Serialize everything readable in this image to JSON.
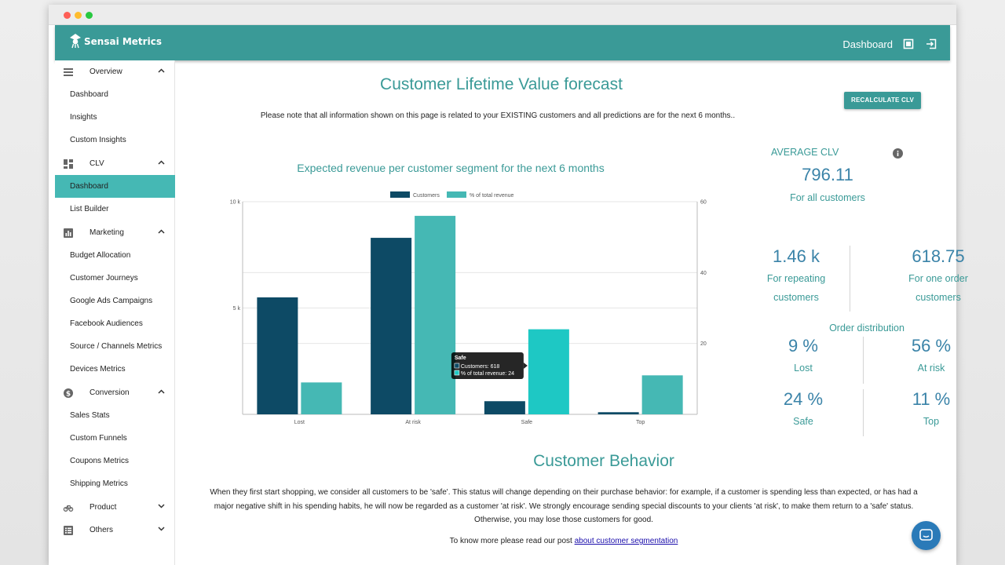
{
  "app": {
    "brand": "Sensai Metrics",
    "nav_title": "Dashboard"
  },
  "colors": {
    "primary": "#3a9a97",
    "sidebar_active": "#45b8b4",
    "customers_bar": "#0d4a65",
    "revenue_bar": "#45b8b4",
    "revenue_bar_highlight": "#1ec8c4",
    "stat_blue": "#3a83a8",
    "chat_button": "#2a7ab8"
  },
  "icons": {
    "brand": "lightbulb-icon",
    "nav_dashboard": "dashboard-icon",
    "nav_logout": "logout-icon",
    "help": "chat-icon",
    "info": "info-icon"
  },
  "sidebar": {
    "sections": [
      {
        "label": "Overview",
        "icon": "overview-icon",
        "items": [
          "Dashboard",
          "Insights",
          "Custom Insights"
        ]
      },
      {
        "label": "CLV",
        "icon": "clv-icon",
        "items": [
          "Dashboard",
          "List Builder"
        ],
        "active_item": "Dashboard"
      },
      {
        "label": "Marketing",
        "icon": "bar-chart-icon",
        "items": [
          "Budget Allocation",
          "Customer Journeys",
          "Google Ads Campaigns",
          "Facebook Audiences",
          "Source / Channels Metrics",
          "Devices Metrics"
        ]
      },
      {
        "label": "Conversion",
        "icon": "dollar-icon",
        "items": [
          "Sales Stats",
          "Custom Funnels",
          "Coupons Metrics",
          "Shipping Metrics"
        ]
      },
      {
        "label": "Product",
        "icon": "bike-icon",
        "items": []
      },
      {
        "label": "Others",
        "icon": "list-icon",
        "items": []
      }
    ]
  },
  "main": {
    "title": "Customer Lifetime Value forecast",
    "recalc_label": "RECALCULATE CLV",
    "note": "Please note that all information shown on this page is related to your EXISTING customers and all predictions are for the next 6 months..",
    "avg_clv": {
      "label": "AVERAGE CLV",
      "value": "796.11",
      "sub": "For all customers"
    },
    "repeating": {
      "value": "1.46 k",
      "label_line1": "For repeating",
      "label_line2": "customers"
    },
    "one_order": {
      "value": "618.75",
      "label_line1": "For one order",
      "label_line2": "customers"
    },
    "order_distribution": {
      "title": "Order distribution",
      "items": [
        {
          "value": "9 %",
          "label": "Lost"
        },
        {
          "value": "56 %",
          "label": "At risk"
        },
        {
          "value": "24 %",
          "label": "Safe"
        },
        {
          "value": "11 %",
          "label": "Top"
        }
      ]
    },
    "behavior": {
      "title": "Customer Behavior",
      "text": "When they first start shopping, we consider all customers to be 'safe'. This status will change depending on their purchase behavior: for example, if a customer is spending less than expected, or has had a major negative shift in his spending habits, he will now be regarded as a customer 'at risk'. We strongly encourage sending special discounts to your clients 'at risk', to make them return to a 'safe' status. Otherwise, you may lose those customers for good.",
      "more_prefix": "To know more please read our post",
      "more_link": "about customer segmentation"
    }
  },
  "chart_data": {
    "type": "bar",
    "title": "Expected revenue per customer segment for the next 6 months",
    "categories": [
      "Lost",
      "At risk",
      "Safe",
      "Top"
    ],
    "series": [
      {
        "name": "Customers",
        "axis": "left",
        "values": [
          5500,
          8300,
          618,
          100
        ]
      },
      {
        "name": "% of total revenue",
        "axis": "right",
        "values": [
          9,
          56,
          24,
          11
        ]
      }
    ],
    "y_left": {
      "ticks": [
        "10 k",
        "5 k"
      ],
      "range": [
        0,
        10000
      ]
    },
    "y_right": {
      "ticks": [
        "60",
        "40",
        "20"
      ],
      "range": [
        0,
        60
      ]
    },
    "legend": "top",
    "grid": true,
    "tooltip": {
      "title": "Safe",
      "line1": "Customers: 618",
      "line2": "% of total revenue: 24"
    }
  }
}
